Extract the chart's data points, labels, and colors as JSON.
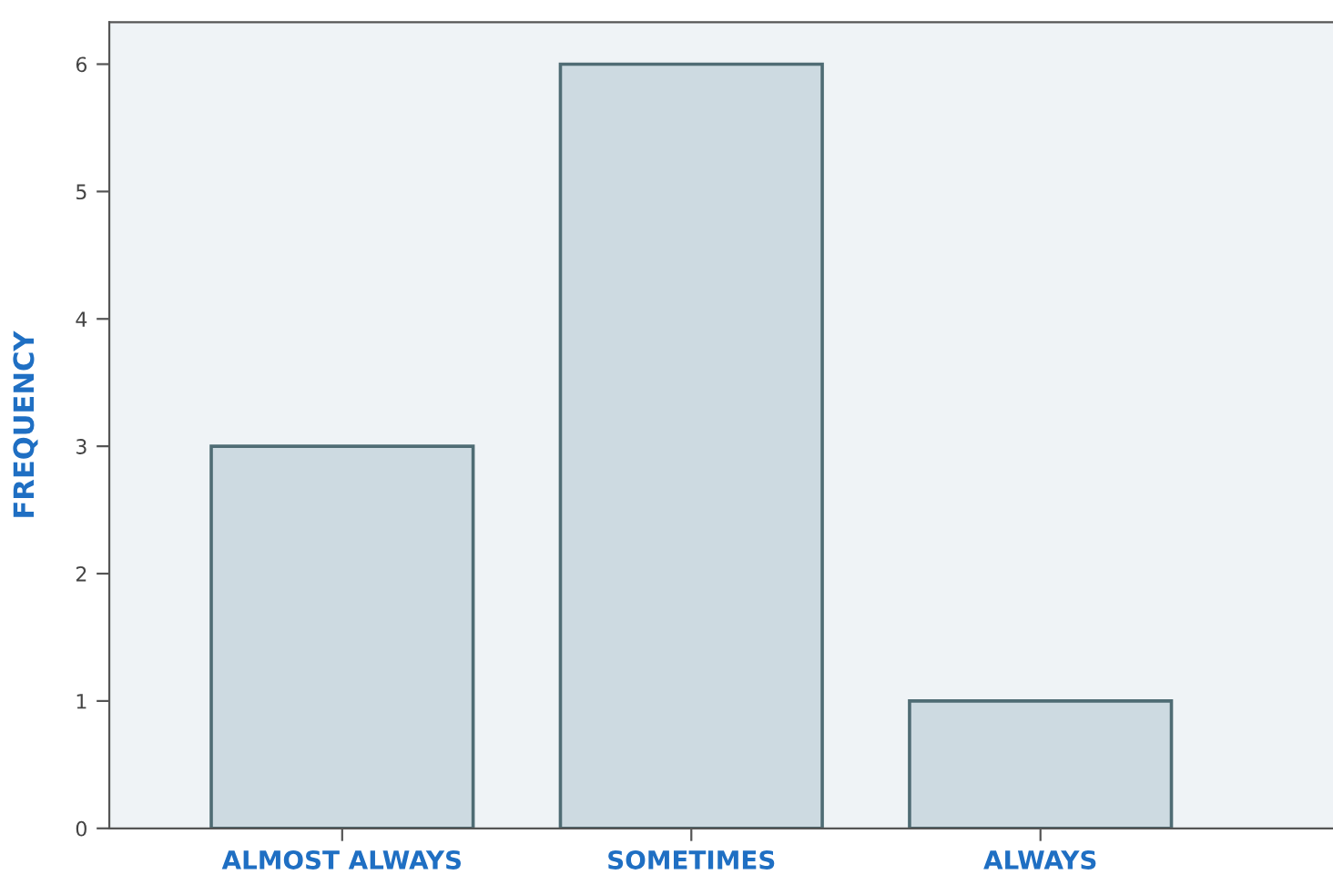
{
  "chart_data": {
    "type": "bar",
    "ylabel": "FREQUENCY",
    "categories": [
      "ALMOST ALWAYS",
      "SOMETIMES",
      "ALWAYS"
    ],
    "values": [
      3,
      6,
      1
    ],
    "color": "#cddae1",
    "ylim": [
      0,
      6.33
    ],
    "yticks": [
      0,
      1,
      2,
      3,
      4,
      5,
      6
    ],
    "grid": false
  }
}
